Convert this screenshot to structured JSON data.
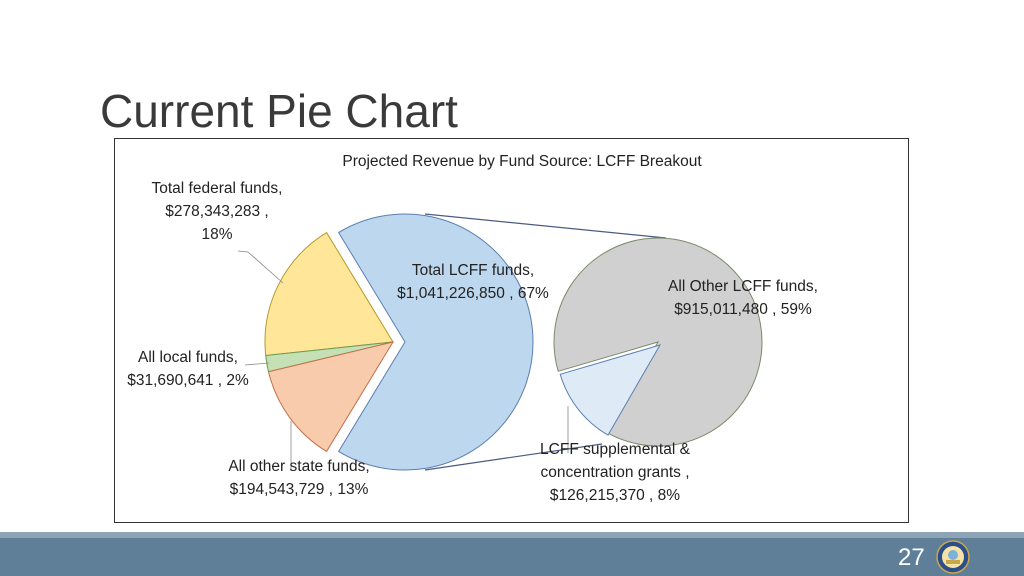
{
  "slide": {
    "title": "Current Pie Chart",
    "page_number": "27",
    "logo": "state-seal"
  },
  "chart_data": {
    "type": "pie-of-pie",
    "title": "Projected Revenue by Fund Source: LCFF Breakout",
    "primary": [
      {
        "name": "Total LCFF funds",
        "value": 1041226850,
        "percent": 67,
        "color": "#bdd7ee",
        "label": [
          "Total LCFF funds,",
          "$1,041,226,850 , 67%"
        ]
      },
      {
        "name": "Total federal funds",
        "value": 278343283,
        "percent": 18,
        "color": "#ffe699",
        "label": [
          "Total federal funds,",
          "$278,343,283 ,",
          "18%"
        ]
      },
      {
        "name": "All local funds",
        "value": 31690641,
        "percent": 2,
        "color": "#c5e0b4",
        "label": [
          "All local funds,",
          "$31,690,641 , 2%"
        ]
      },
      {
        "name": "All other state funds",
        "value": 194543729,
        "percent": 13,
        "color": "#f8cbad",
        "label": [
          "All other state funds,",
          "$194,543,729 , 13%"
        ]
      }
    ],
    "secondary": [
      {
        "name": "All Other LCFF funds",
        "value": 915011480,
        "percent": 59,
        "color": "#d0d0d0",
        "label": [
          "All Other LCFF funds,",
          "$915,011,480 , 59%"
        ]
      },
      {
        "name": "LCFF supplemental & concentration grants",
        "value": 126215370,
        "percent": 8,
        "color": "#deebf7",
        "label": [
          "LCFF supplemental &",
          "concentration grants ,",
          "$126,215,370 , 8%"
        ]
      }
    ]
  }
}
